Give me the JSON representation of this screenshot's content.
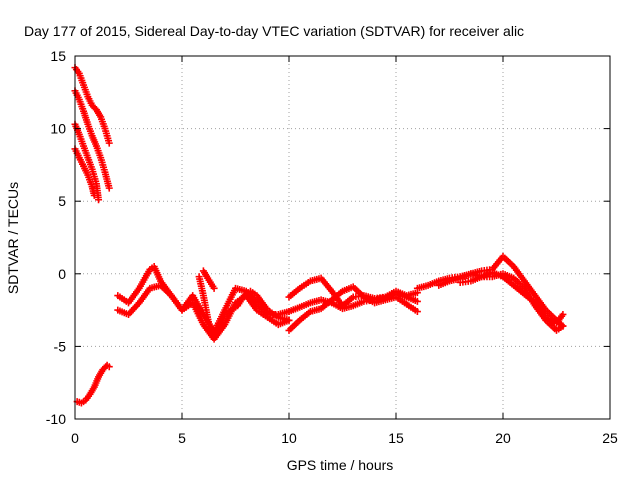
{
  "chart_data": {
    "type": "scatter",
    "title": "Day 177 of 2015, Sidereal Day-to-day VTEC variation (SDTVAR) for receiver alic",
    "xlabel": "GPS time / hours",
    "ylabel": "SDTVAR / TECUs",
    "xlim": [
      0,
      25
    ],
    "ylim": [
      -10,
      15
    ],
    "xticks": [
      0,
      5,
      10,
      15,
      20,
      25
    ],
    "yticks": [
      -10,
      -5,
      0,
      5,
      10,
      15
    ],
    "grid": true,
    "marker": "+",
    "series_color": "#ff0000",
    "series": [
      {
        "name": "track-1",
        "x": [
          0.0,
          0.2,
          0.4,
          0.6,
          0.8,
          1.0,
          1.2,
          1.4,
          1.6
        ],
        "y": [
          14.2,
          13.8,
          13.0,
          12.2,
          11.6,
          11.3,
          10.8,
          10.0,
          9.0
        ]
      },
      {
        "name": "track-2",
        "x": [
          0.0,
          0.2,
          0.4,
          0.6,
          0.8,
          1.0,
          1.2,
          1.4,
          1.6
        ],
        "y": [
          12.6,
          12.0,
          11.2,
          10.3,
          9.5,
          8.8,
          8.0,
          7.0,
          5.9
        ]
      },
      {
        "name": "track-3",
        "x": [
          0.0,
          0.2,
          0.4,
          0.6,
          0.8,
          1.0,
          1.1
        ],
        "y": [
          10.3,
          9.6,
          8.8,
          8.0,
          7.2,
          6.2,
          5.1
        ]
      },
      {
        "name": "track-4",
        "x": [
          0.0,
          0.2,
          0.4,
          0.6,
          0.8,
          0.9
        ],
        "y": [
          8.6,
          8.0,
          7.4,
          6.8,
          6.0,
          5.4
        ]
      },
      {
        "name": "track-5",
        "x": [
          0.1,
          0.3,
          0.5,
          0.7,
          0.9,
          1.1,
          1.3,
          1.5,
          1.6
        ],
        "y": [
          -8.8,
          -8.9,
          -8.7,
          -8.3,
          -7.8,
          -7.1,
          -6.6,
          -6.3,
          -6.4
        ]
      },
      {
        "name": "track-6",
        "x": [
          2.0,
          2.5,
          3.0,
          3.5,
          3.7,
          4.0,
          4.5,
          5.0,
          5.5,
          6.0,
          6.5,
          7.0,
          7.5,
          8.0,
          8.5,
          9.0,
          9.5,
          10.0
        ],
        "y": [
          -1.5,
          -2.0,
          -1.0,
          0.3,
          0.5,
          -0.5,
          -1.5,
          -2.5,
          -2.0,
          -3.5,
          -4.5,
          -3.5,
          -2.0,
          -1.5,
          -2.5,
          -3.0,
          -3.5,
          -3.2
        ]
      },
      {
        "name": "track-7",
        "x": [
          2.0,
          2.5,
          3.0,
          3.5,
          4.0,
          4.5,
          5.0,
          5.5,
          6.0,
          6.5,
          7.0,
          7.5,
          8.0,
          8.5,
          9.0,
          9.5,
          10.0
        ],
        "y": [
          -2.5,
          -2.8,
          -2.0,
          -1.0,
          -0.8,
          -1.5,
          -2.5,
          -1.5,
          -2.8,
          -4.0,
          -2.5,
          -1.0,
          -1.2,
          -2.0,
          -2.8,
          -2.8,
          -2.6
        ]
      },
      {
        "name": "track-8",
        "x": [
          5.8,
          6.0,
          6.3,
          6.6,
          6.8,
          7.0,
          7.3,
          7.6,
          7.9,
          8.2,
          8.5,
          9.0,
          9.5,
          10.0
        ],
        "y": [
          -0.2,
          -1.5,
          -3.8,
          -4.2,
          -3.5,
          -2.8,
          -2.5,
          -2.2,
          -1.5,
          -1.2,
          -1.5,
          -2.5,
          -3.0,
          -3.2
        ]
      },
      {
        "name": "track-9",
        "x": [
          6.0,
          6.2,
          6.5
        ],
        "y": [
          0.2,
          -0.3,
          -1.0
        ]
      },
      {
        "name": "track-10",
        "x": [
          10.0,
          10.5,
          11.0,
          11.5,
          12.0,
          12.5,
          13.0,
          13.5,
          14.0,
          14.5,
          15.0,
          15.5,
          16.0
        ],
        "y": [
          -1.6,
          -1.0,
          -0.5,
          -0.3,
          -1.2,
          -2.2,
          -1.6,
          -1.5,
          -1.7,
          -1.6,
          -1.4,
          -1.6,
          -1.9
        ]
      },
      {
        "name": "track-11",
        "x": [
          10.0,
          10.5,
          11.0,
          11.5,
          12.0,
          12.5,
          13.0,
          13.5,
          14.0,
          14.5,
          15.0,
          15.5,
          16.0
        ],
        "y": [
          -3.9,
          -3.2,
          -2.6,
          -2.4,
          -1.8,
          -1.2,
          -0.9,
          -1.6,
          -2.0,
          -1.8,
          -1.6,
          -2.1,
          -2.6
        ]
      },
      {
        "name": "track-12",
        "x": [
          10.0,
          10.5,
          11.0,
          11.5,
          12.0,
          12.5,
          13.0,
          13.5,
          14.0,
          14.5,
          15.0,
          15.5,
          16.0
        ],
        "y": [
          -2.6,
          -2.3,
          -2.0,
          -1.8,
          -2.0,
          -2.4,
          -2.2,
          -1.9,
          -1.8,
          -1.6,
          -1.2,
          -1.5,
          -1.3
        ]
      },
      {
        "name": "track-13",
        "x": [
          16.0,
          16.5,
          17.0,
          17.5,
          18.0,
          18.5,
          19.0,
          19.5,
          20.0,
          20.5,
          21.0,
          21.5,
          22.0,
          22.5,
          22.8
        ],
        "y": [
          -1.0,
          -0.8,
          -0.5,
          -0.3,
          -0.2,
          0.0,
          0.2,
          0.3,
          1.2,
          0.5,
          -0.5,
          -1.5,
          -2.5,
          -3.2,
          -3.6
        ]
      },
      {
        "name": "track-14",
        "x": [
          17.0,
          17.5,
          18.0,
          18.5,
          19.0,
          19.5,
          20.0,
          20.5,
          21.0,
          21.5,
          22.0,
          22.5,
          22.8
        ],
        "y": [
          -0.8,
          -0.5,
          -0.3,
          0.0,
          -0.2,
          -0.2,
          0.0,
          -0.3,
          -1.0,
          -2.2,
          -3.2,
          -3.9,
          -3.6
        ]
      },
      {
        "name": "track-15",
        "x": [
          18.0,
          18.5,
          19.0,
          19.5,
          20.0,
          20.5,
          21.0,
          21.5,
          22.0,
          22.5,
          22.8
        ],
        "y": [
          -0.6,
          -0.5,
          -0.2,
          0.1,
          -0.2,
          -0.8,
          -1.4,
          -2.0,
          -3.0,
          -3.4,
          -2.8
        ]
      }
    ]
  }
}
